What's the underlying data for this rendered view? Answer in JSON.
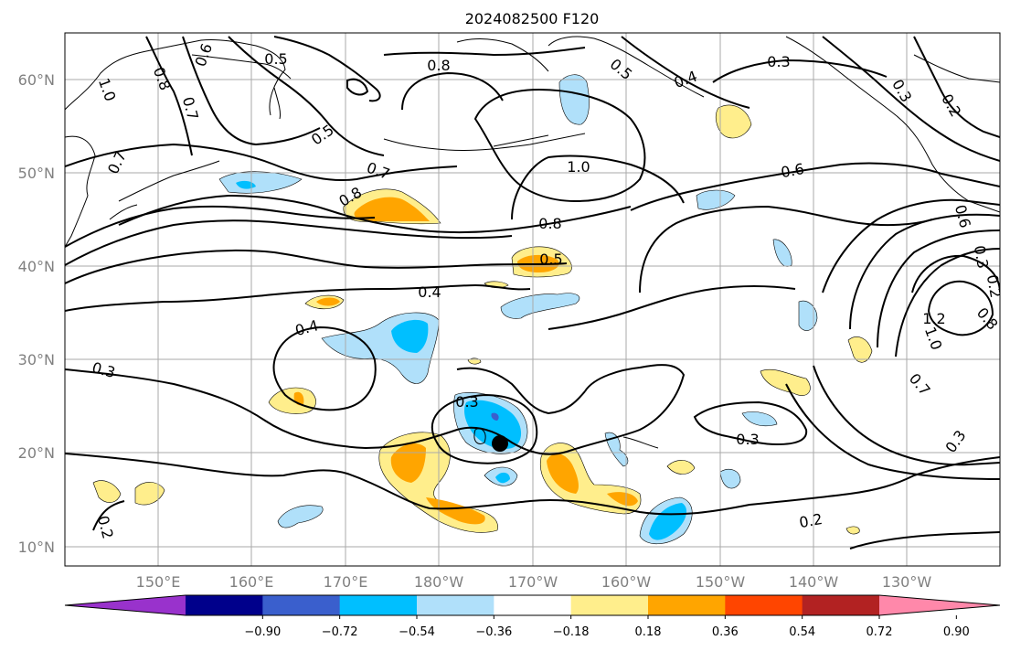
{
  "title": "2024082500 F120",
  "lat_labels": [
    "60°N",
    "50°N",
    "40°N",
    "30°N",
    "20°N",
    "10°N"
  ],
  "lon_labels": [
    "150°E",
    "160°E",
    "170°E",
    "180°W",
    "170°W",
    "160°W",
    "150°W",
    "140°W",
    "130°W"
  ],
  "colorbar": {
    "colors": [
      "#9932cc",
      "#00008b",
      "#3a5fcd",
      "#00bfff",
      "#b0e0fa",
      "#ffffff",
      "#ffee8c",
      "#ffa500",
      "#ff4500",
      "#b22222",
      "#ff88aa"
    ],
    "tick_labels": [
      "−0.90",
      "−0.72",
      "−0.54",
      "−0.36",
      "−0.18",
      "0.18",
      "0.36",
      "0.54",
      "0.72",
      "0.90"
    ]
  },
  "shading_colors": {
    "light_blue": "#b0e0fa",
    "blue": "#00bfff",
    "dark_blue": "#3a5fcd",
    "yellow": "#ffee8c",
    "orange": "#ffa500"
  },
  "contour_labels": [
    {
      "id": "c1",
      "text": "0.5"
    },
    {
      "id": "c2",
      "text": "0.8"
    },
    {
      "id": "c3",
      "text": "0.6"
    },
    {
      "id": "c4",
      "text": "1.0"
    },
    {
      "id": "c5",
      "text": "0.8"
    },
    {
      "id": "c6",
      "text": "0.7"
    },
    {
      "id": "c7",
      "text": "0.5"
    },
    {
      "id": "c8",
      "text": "0.7"
    },
    {
      "id": "c9",
      "text": "0.7"
    },
    {
      "id": "c10",
      "text": "0.8"
    },
    {
      "id": "c11",
      "text": "1.0"
    },
    {
      "id": "c12",
      "text": "0.5"
    },
    {
      "id": "c13",
      "text": "0.4"
    },
    {
      "id": "c14",
      "text": "0.3"
    },
    {
      "id": "c15",
      "text": "0.3"
    },
    {
      "id": "c16",
      "text": "0.2"
    },
    {
      "id": "c17",
      "text": "0.6"
    },
    {
      "id": "c18",
      "text": "0.8"
    },
    {
      "id": "c19",
      "text": "0.5"
    },
    {
      "id": "c20",
      "text": "0.4"
    },
    {
      "id": "c21",
      "text": "0.4"
    },
    {
      "id": "c22",
      "text": "0.3"
    },
    {
      "id": "c23",
      "text": "0.3"
    },
    {
      "id": "c24",
      "text": "0.3"
    },
    {
      "id": "c25",
      "text": "0.2"
    },
    {
      "id": "c26",
      "text": "0.2"
    },
    {
      "id": "c27",
      "text": "0.6"
    },
    {
      "id": "c28",
      "text": "0.3"
    },
    {
      "id": "c29",
      "text": "0.2"
    },
    {
      "id": "c30",
      "text": "1.2"
    },
    {
      "id": "c31",
      "text": "1.0"
    },
    {
      "id": "c32",
      "text": "0.8"
    },
    {
      "id": "c33",
      "text": "0.7"
    },
    {
      "id": "c34",
      "text": "0.3"
    }
  ]
}
